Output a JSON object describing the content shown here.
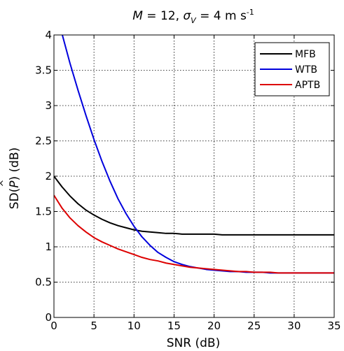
{
  "chart_data": {
    "type": "line",
    "title": {
      "M_symbol": "M",
      "eq1": " = 12, ",
      "sigma_symbol": "σ",
      "sigma_sub": "V",
      "eq2": " = 4 m s",
      "exponent": "-1"
    },
    "xlabel": "SNR (dB)",
    "ylabel": {
      "prefix": "SD(",
      "symbol": "P",
      "hat": "^",
      "suffix": ") (dB)"
    },
    "xlim": [
      0,
      35
    ],
    "ylim": [
      0,
      4
    ],
    "x_ticks": [
      0,
      5,
      10,
      15,
      20,
      25,
      30,
      35
    ],
    "x_tick_labels": [
      "0",
      "5",
      "10",
      "15",
      "20",
      "25",
      "30",
      "35"
    ],
    "y_ticks": [
      0,
      0.5,
      1,
      1.5,
      2,
      2.5,
      3,
      3.5,
      4
    ],
    "y_tick_labels": [
      "0",
      "0.5",
      "1",
      "1.5",
      "2",
      "2.5",
      "3",
      "3.5",
      "4"
    ],
    "grid": true,
    "grid_style": "dotted",
    "legend_position": "top-right",
    "x": [
      0,
      1,
      2,
      3,
      4,
      5,
      6,
      7,
      8,
      9,
      10,
      11,
      12,
      13,
      14,
      15,
      16,
      17,
      18,
      19,
      20,
      21,
      22,
      23,
      24,
      25,
      26,
      27,
      28,
      29,
      30,
      31,
      32,
      33,
      34,
      35
    ],
    "series": [
      {
        "name": "MFB",
        "color": "#000000",
        "values": [
          2.0,
          1.85,
          1.72,
          1.61,
          1.52,
          1.45,
          1.39,
          1.34,
          1.3,
          1.27,
          1.24,
          1.22,
          1.21,
          1.2,
          1.19,
          1.19,
          1.18,
          1.18,
          1.18,
          1.18,
          1.18,
          1.17,
          1.17,
          1.17,
          1.17,
          1.17,
          1.17,
          1.17,
          1.17,
          1.17,
          1.17,
          1.17,
          1.17,
          1.17,
          1.17,
          1.17
        ]
      },
      {
        "name": "WTB",
        "color": "#0000dd",
        "values": [
          null,
          4.02,
          3.6,
          3.22,
          2.86,
          2.52,
          2.21,
          1.93,
          1.68,
          1.47,
          1.29,
          1.14,
          1.02,
          0.92,
          0.85,
          0.79,
          0.75,
          0.72,
          0.7,
          0.68,
          0.67,
          0.66,
          0.65,
          0.65,
          0.64,
          0.64,
          0.64,
          0.63,
          0.63,
          0.63,
          0.63,
          0.63,
          0.63,
          0.63,
          0.63,
          0.63
        ]
      },
      {
        "name": "APTB",
        "color": "#dd0000",
        "values": [
          1.73,
          1.55,
          1.41,
          1.3,
          1.21,
          1.13,
          1.07,
          1.02,
          0.97,
          0.93,
          0.89,
          0.85,
          0.82,
          0.8,
          0.77,
          0.75,
          0.73,
          0.71,
          0.7,
          0.69,
          0.68,
          0.67,
          0.66,
          0.65,
          0.65,
          0.64,
          0.64,
          0.64,
          0.63,
          0.63,
          0.63,
          0.63,
          0.63,
          0.63,
          0.63,
          0.63
        ]
      }
    ]
  }
}
